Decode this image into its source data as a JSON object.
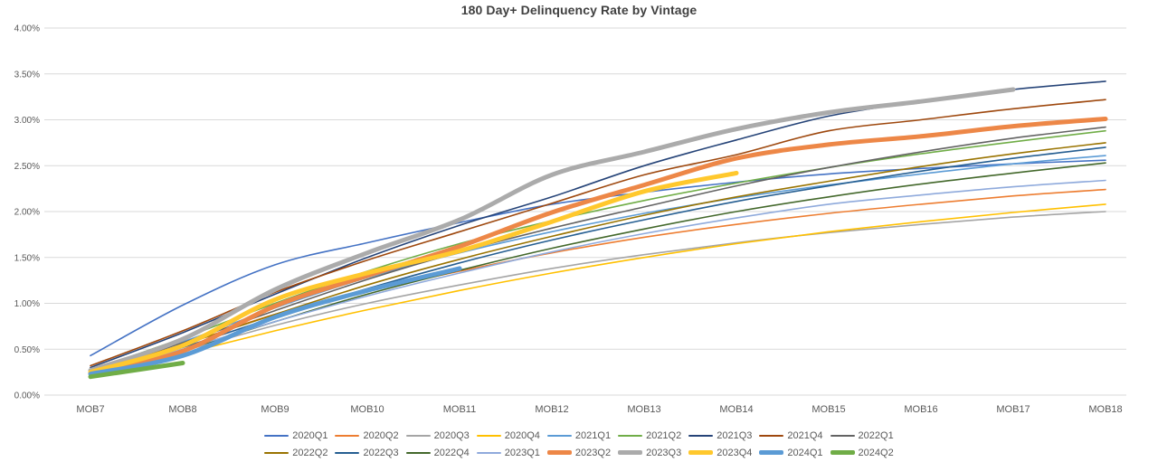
{
  "chart_data": {
    "type": "line",
    "title": "180 Day+ Delinquency Rate by Vintage",
    "xlabel": "",
    "ylabel": "",
    "x_categories": [
      "MOB7",
      "MOB8",
      "MOB9",
      "MOB10",
      "MOB11",
      "MOB12",
      "MOB13",
      "MOB14",
      "MOB15",
      "MOB16",
      "MOB17",
      "MOB18"
    ],
    "y_tick_labels": [
      "0.00%",
      "0.50%",
      "1.00%",
      "1.50%",
      "2.00%",
      "2.50%",
      "3.00%",
      "3.50%",
      "4.00%"
    ],
    "ylim": [
      0,
      4
    ],
    "grid": true,
    "legend_position": "bottom",
    "legend_rows": [
      [
        "2020Q1",
        "2020Q2",
        "2020Q3",
        "2020Q4",
        "2021Q1",
        "2021Q2",
        "2021Q3",
        "2021Q4",
        "2022Q1"
      ],
      [
        "2022Q2",
        "2022Q3",
        "2022Q4",
        "2023Q1",
        "2023Q2",
        "2023Q3",
        "2023Q4",
        "2024Q1",
        "2024Q2"
      ]
    ],
    "series": [
      {
        "name": "2020Q1",
        "color": "#4472C4",
        "thick": false,
        "values": [
          0.43,
          0.98,
          1.42,
          1.66,
          1.88,
          2.08,
          2.21,
          2.32,
          2.41,
          2.47,
          2.52,
          2.56
        ]
      },
      {
        "name": "2020Q2",
        "color": "#ED7D31",
        "thick": false,
        "values": [
          0.25,
          0.55,
          0.88,
          1.13,
          1.35,
          1.55,
          1.72,
          1.86,
          1.98,
          2.08,
          2.17,
          2.24
        ]
      },
      {
        "name": "2020Q3",
        "color": "#A5A5A5",
        "thick": false,
        "values": [
          0.22,
          0.48,
          0.76,
          1.0,
          1.2,
          1.38,
          1.53,
          1.66,
          1.77,
          1.86,
          1.94,
          2.0
        ]
      },
      {
        "name": "2020Q4",
        "color": "#FFC000",
        "thick": false,
        "values": [
          0.21,
          0.45,
          0.7,
          0.93,
          1.14,
          1.33,
          1.5,
          1.65,
          1.78,
          1.89,
          1.99,
          2.08
        ]
      },
      {
        "name": "2021Q1",
        "color": "#5B9BD5",
        "thick": false,
        "values": [
          0.26,
          0.58,
          0.95,
          1.28,
          1.55,
          1.78,
          1.98,
          2.15,
          2.29,
          2.41,
          2.52,
          2.61
        ]
      },
      {
        "name": "2021Q2",
        "color": "#70AD47",
        "thick": false,
        "values": [
          0.27,
          0.62,
          1.0,
          1.35,
          1.65,
          1.9,
          2.12,
          2.31,
          2.48,
          2.63,
          2.76,
          2.88
        ]
      },
      {
        "name": "2021Q3",
        "color": "#264478",
        "thick": false,
        "values": [
          0.3,
          0.68,
          1.1,
          1.5,
          1.85,
          2.16,
          2.5,
          2.78,
          3.04,
          3.2,
          3.33,
          3.42
        ]
      },
      {
        "name": "2021Q4",
        "color": "#9E480E",
        "thick": false,
        "values": [
          0.32,
          0.7,
          1.12,
          1.47,
          1.78,
          2.09,
          2.4,
          2.62,
          2.88,
          3.0,
          3.12,
          3.22
        ]
      },
      {
        "name": "2022Q1",
        "color": "#636363",
        "thick": false,
        "values": [
          0.26,
          0.57,
          0.92,
          1.26,
          1.56,
          1.82,
          2.05,
          2.28,
          2.48,
          2.65,
          2.8,
          2.92
        ]
      },
      {
        "name": "2022Q2",
        "color": "#997300",
        "thick": false,
        "values": [
          0.25,
          0.55,
          0.88,
          1.2,
          1.48,
          1.73,
          1.96,
          2.16,
          2.33,
          2.49,
          2.63,
          2.75
        ]
      },
      {
        "name": "2022Q3",
        "color": "#255E91",
        "thick": false,
        "values": [
          0.24,
          0.52,
          0.85,
          1.16,
          1.44,
          1.69,
          1.91,
          2.11,
          2.28,
          2.44,
          2.58,
          2.7
        ]
      },
      {
        "name": "2022Q4",
        "color": "#43682B",
        "thick": false,
        "values": [
          0.22,
          0.49,
          0.8,
          1.1,
          1.36,
          1.6,
          1.81,
          2.0,
          2.16,
          2.3,
          2.42,
          2.53
        ]
      },
      {
        "name": "2023Q1",
        "color": "#8FAADC",
        "thick": false,
        "values": [
          0.23,
          0.5,
          0.8,
          1.08,
          1.33,
          1.56,
          1.76,
          1.93,
          2.08,
          2.18,
          2.27,
          2.34
        ]
      },
      {
        "name": "2023Q2",
        "color": "#ED8747",
        "thick": true,
        "values": [
          0.24,
          0.48,
          0.97,
          1.3,
          1.62,
          1.99,
          2.29,
          2.58,
          2.73,
          2.82,
          2.93,
          3.01
        ]
      },
      {
        "name": "2023Q3",
        "color": "#ABABAB",
        "thick": true,
        "values": [
          0.27,
          0.61,
          1.15,
          1.55,
          1.91,
          2.4,
          2.65,
          2.9,
          3.08,
          3.2,
          3.33,
          null
        ]
      },
      {
        "name": "2023Q4",
        "color": "#FFC82D",
        "thick": true,
        "values": [
          0.25,
          0.54,
          1.04,
          1.33,
          1.57,
          1.89,
          2.22,
          2.42,
          null,
          null,
          null,
          null
        ]
      },
      {
        "name": "2024Q1",
        "color": "#5B9BD5",
        "thick": true,
        "values": [
          0.23,
          0.43,
          0.85,
          1.14,
          1.38,
          null,
          null,
          null,
          null,
          null,
          null,
          null
        ]
      },
      {
        "name": "2024Q2",
        "color": "#70AD47",
        "thick": true,
        "values": [
          0.2,
          0.35,
          null,
          null,
          null,
          null,
          null,
          null,
          null,
          null,
          null,
          null
        ]
      }
    ]
  }
}
